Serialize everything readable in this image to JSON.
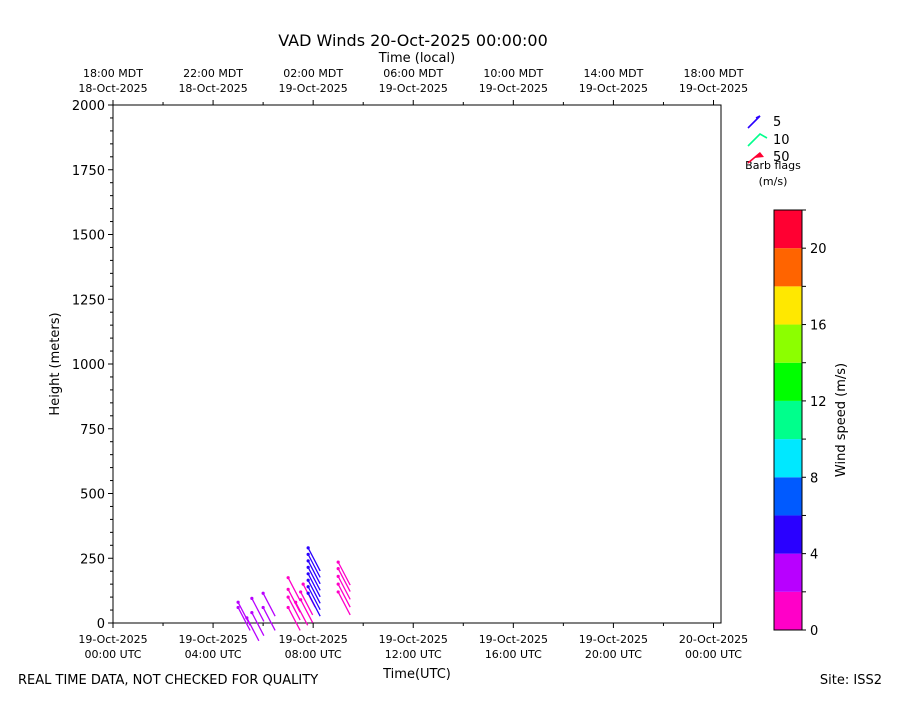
{
  "footer": {
    "left": "REAL TIME DATA, NOT CHECKED FOR QUALITY",
    "right": "Site: ISS2"
  },
  "colors": {
    "speed_bins": [
      "#ff00c8",
      "#b800ff",
      "#2a00ff",
      "#005aff",
      "#00e8ff",
      "#00ff8c",
      "#00ff00",
      "#8cff00",
      "#ffe800",
      "#ff6400",
      "#ff0032"
    ]
  },
  "chart_data": {
    "type": "barb",
    "title": "VAD Winds 20-Oct-2025 00:00:00",
    "top_xlabel": "Time (local)",
    "xlabel": "Time(UTC)",
    "ylabel": "Height (meters)",
    "xlim_hours": [
      0,
      24.3
    ],
    "ylim": [
      0,
      2000
    ],
    "yticks": [
      0,
      250,
      500,
      750,
      1000,
      1250,
      1500,
      1750,
      2000
    ],
    "bottom_ticks": [
      {
        "hour": 0,
        "line1": "19-Oct-2025",
        "line2": "00:00 UTC"
      },
      {
        "hour": 4,
        "line1": "19-Oct-2025",
        "line2": "04:00 UTC"
      },
      {
        "hour": 8,
        "line1": "19-Oct-2025",
        "line2": "08:00 UTC"
      },
      {
        "hour": 12,
        "line1": "19-Oct-2025",
        "line2": "12:00 UTC"
      },
      {
        "hour": 16,
        "line1": "19-Oct-2025",
        "line2": "16:00 UTC"
      },
      {
        "hour": 20,
        "line1": "19-Oct-2025",
        "line2": "20:00 UTC"
      },
      {
        "hour": 24,
        "line1": "20-Oct-2025",
        "line2": "00:00 UTC"
      }
    ],
    "top_ticks": [
      {
        "hour": 0,
        "line1": "18:00 MDT",
        "line2": "18-Oct-2025"
      },
      {
        "hour": 4,
        "line1": "22:00 MDT",
        "line2": "18-Oct-2025"
      },
      {
        "hour": 8,
        "line1": "02:00 MDT",
        "line2": "19-Oct-2025"
      },
      {
        "hour": 12,
        "line1": "06:00 MDT",
        "line2": "19-Oct-2025"
      },
      {
        "hour": 16,
        "line1": "10:00 MDT",
        "line2": "19-Oct-2025"
      },
      {
        "hour": 20,
        "line1": "14:00 MDT",
        "line2": "19-Oct-2025"
      },
      {
        "hour": 24,
        "line1": "18:00 MDT",
        "line2": "19-Oct-2025"
      }
    ],
    "barb_legend": {
      "entries": [
        {
          "value": "5",
          "color": "#2a00ff"
        },
        {
          "value": "10",
          "color": "#00ff8c"
        },
        {
          "value": "50",
          "color": "#ff0032"
        }
      ],
      "caption_line1": "Barb flags",
      "caption_line2": "(m/s)"
    },
    "colorbar": {
      "label": "Wind speed (m/s)",
      "min": 0,
      "max": 22,
      "bin_width": 2,
      "tick_labels": [
        "0",
        "4",
        "8",
        "12",
        "16",
        "20"
      ],
      "tick_values": [
        0,
        4,
        8,
        12,
        16,
        20
      ]
    },
    "barbs": [
      {
        "hour": 5.0,
        "height": 60,
        "speed": 3.0
      },
      {
        "hour": 5.0,
        "height": 80,
        "speed": 3.0
      },
      {
        "hour": 5.35,
        "height": 20,
        "speed": 3.0
      },
      {
        "hour": 5.55,
        "height": 40,
        "speed": 3.0
      },
      {
        "hour": 5.55,
        "height": 95,
        "speed": 3.0
      },
      {
        "hour": 6.0,
        "height": 60,
        "speed": 3.0
      },
      {
        "hour": 6.0,
        "height": 115,
        "speed": 3.0
      },
      {
        "hour": 7.0,
        "height": 60,
        "speed": 1.5
      },
      {
        "hour": 7.0,
        "height": 100,
        "speed": 1.5
      },
      {
        "hour": 7.0,
        "height": 130,
        "speed": 1.5
      },
      {
        "hour": 7.0,
        "height": 175,
        "speed": 1.5
      },
      {
        "hour": 7.3,
        "height": 80,
        "speed": 1.5
      },
      {
        "hour": 7.5,
        "height": 90,
        "speed": 1.5
      },
      {
        "hour": 7.5,
        "height": 120,
        "speed": 1.5
      },
      {
        "hour": 7.6,
        "height": 150,
        "speed": 1.5
      },
      {
        "hour": 7.8,
        "height": 115,
        "speed": 5.0
      },
      {
        "hour": 7.8,
        "height": 140,
        "speed": 5.0
      },
      {
        "hour": 7.8,
        "height": 165,
        "speed": 5.0
      },
      {
        "hour": 7.8,
        "height": 190,
        "speed": 5.0
      },
      {
        "hour": 7.8,
        "height": 215,
        "speed": 5.0
      },
      {
        "hour": 7.8,
        "height": 240,
        "speed": 5.0
      },
      {
        "hour": 7.8,
        "height": 265,
        "speed": 5.0
      },
      {
        "hour": 7.8,
        "height": 290,
        "speed": 5.0
      },
      {
        "hour": 9.0,
        "height": 120,
        "speed": 1.5
      },
      {
        "hour": 9.0,
        "height": 150,
        "speed": 1.5
      },
      {
        "hour": 9.0,
        "height": 180,
        "speed": 1.5
      },
      {
        "hour": 9.0,
        "height": 210,
        "speed": 1.5
      },
      {
        "hour": 9.0,
        "height": 235,
        "speed": 1.5
      }
    ]
  }
}
